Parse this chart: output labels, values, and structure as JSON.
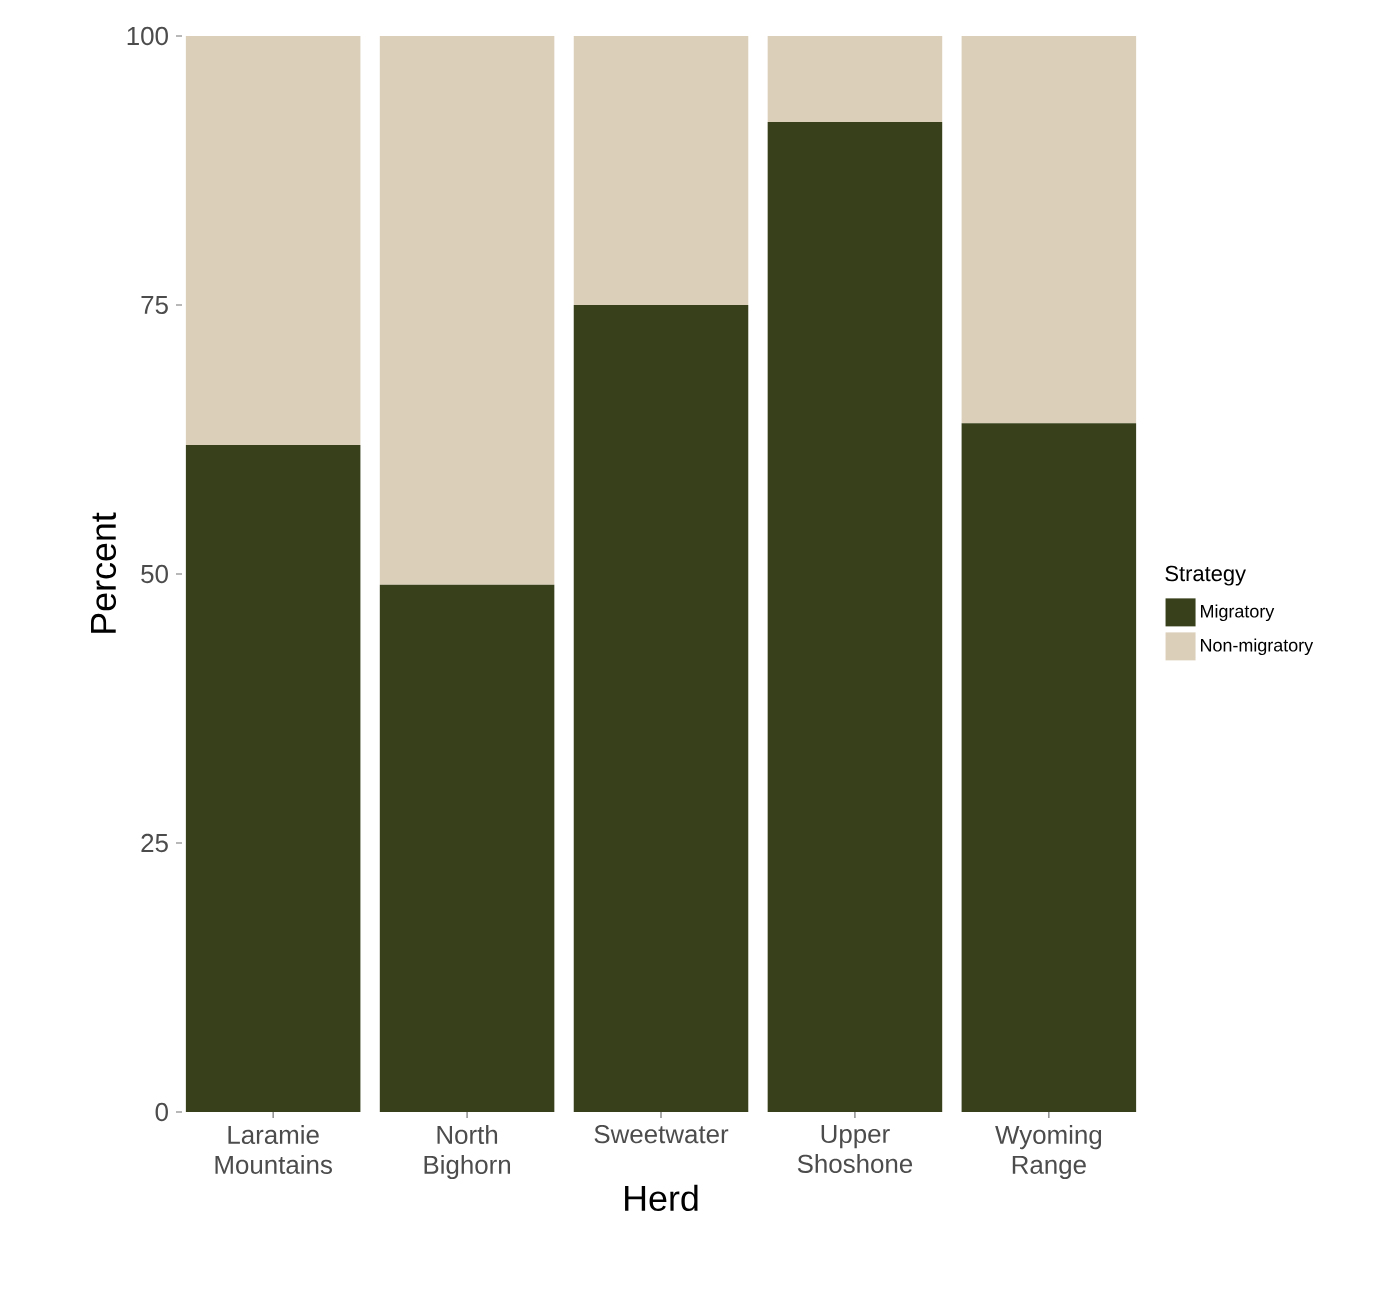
{
  "chart_data": {
    "type": "bar",
    "stacked": true,
    "xlabel": "Herd",
    "ylabel": "Percent",
    "legend_title": "Strategy",
    "legend": "right",
    "categories": [
      "Laramie Mountains",
      "North Bighorn",
      "Sweetwater",
      "Upper Shoshone",
      "Wyoming Range"
    ],
    "series": [
      {
        "name": "Migratory",
        "color": "#37401a",
        "values": [
          62,
          49,
          75,
          92,
          64
        ]
      },
      {
        "name": "Non-migratory",
        "color": "#dbcfba",
        "values": [
          38,
          51,
          25,
          8,
          36
        ]
      }
    ],
    "ylim": [
      0,
      100
    ],
    "yticks": [
      0,
      25,
      50,
      75,
      100
    ]
  }
}
